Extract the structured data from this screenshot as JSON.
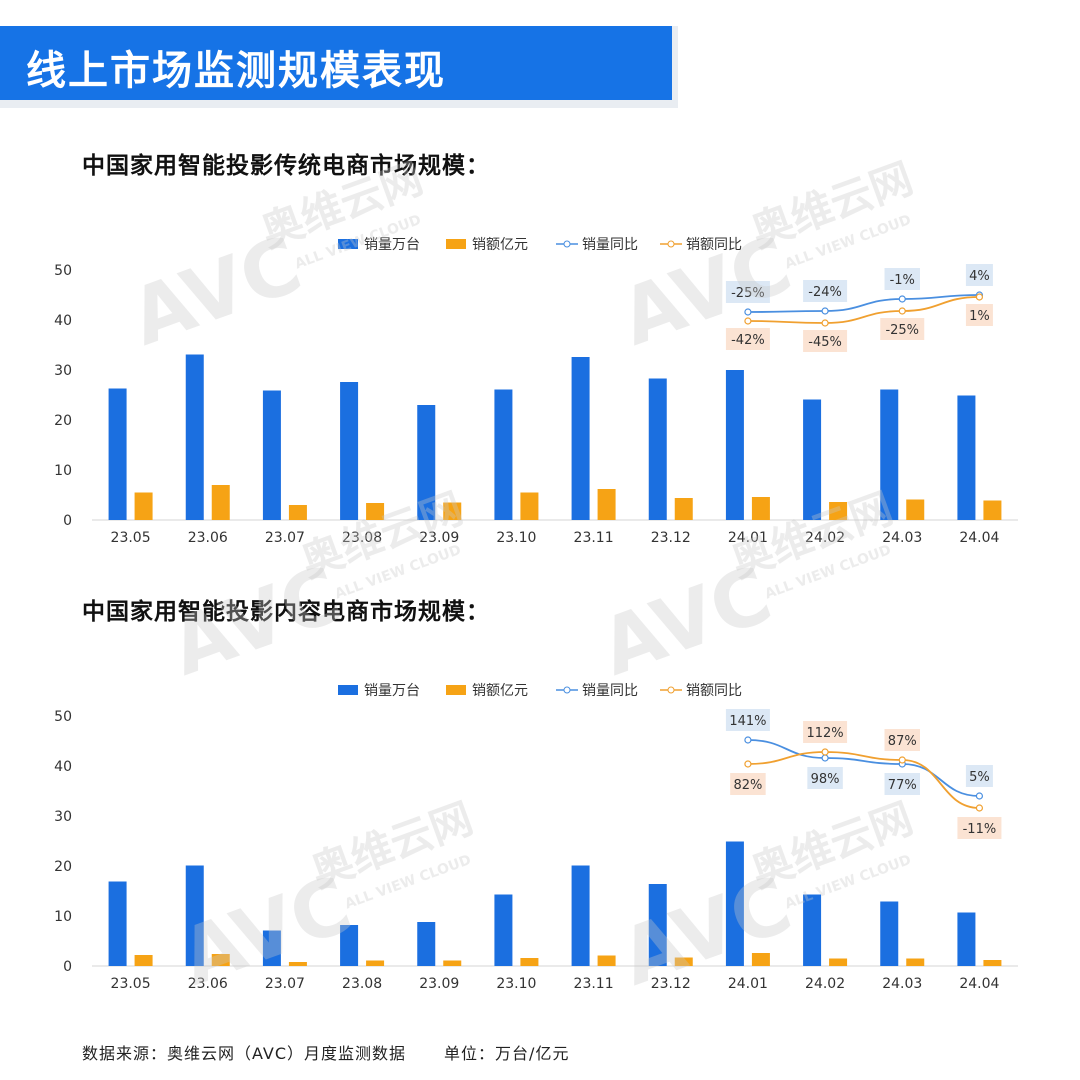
{
  "header": {
    "title": "线上市场监测规模表现"
  },
  "sections": [
    {
      "title": "中国家用智能投影传统电商市场规模："
    },
    {
      "title": "中国家用智能投影内容电商市场规模："
    }
  ],
  "watermark": {
    "text": "奥维云网",
    "sub": "ALL VIEW CLOUD",
    "logo": "AVC"
  },
  "colors": {
    "bar_volume": "#1b6fe0",
    "bar_revenue": "#f6a315",
    "line_volume": "#4a8fe0",
    "line_revenue": "#f0a030",
    "label_volume_bg": "#dce8f5",
    "label_revenue_bg": "#fbe3d3"
  },
  "chart_data": [
    {
      "type": "bar",
      "categories": [
        "23.05",
        "23.06",
        "23.07",
        "23.08",
        "23.09",
        "23.10",
        "23.11",
        "23.12",
        "24.01",
        "24.02",
        "24.03",
        "24.04"
      ],
      "ylim": [
        0,
        50
      ],
      "yticks": [
        0,
        10,
        20,
        30,
        40,
        50
      ],
      "legend": [
        "销量万台",
        "销额亿元",
        "销量同比",
        "销额同比"
      ],
      "series": [
        {
          "name": "销量万台",
          "values": [
            26.3,
            33.1,
            25.9,
            27.6,
            23.0,
            26.1,
            32.6,
            28.3,
            30.0,
            24.1,
            26.1,
            24.9
          ]
        },
        {
          "name": "销额亿元",
          "values": [
            5.5,
            7.0,
            3.0,
            3.4,
            3.5,
            5.5,
            6.2,
            4.4,
            4.6,
            3.6,
            4.1,
            3.9
          ]
        }
      ],
      "lines": [
        {
          "name": "销量同比",
          "x": [
            "24.01",
            "24.02",
            "24.03",
            "24.04"
          ],
          "values": [
            "-25%",
            "-24%",
            "-1%",
            "4%"
          ]
        },
        {
          "name": "销额同比",
          "x": [
            "24.01",
            "24.02",
            "24.03",
            "24.04"
          ],
          "values": [
            "-42%",
            "-45%",
            "-25%",
            "1%"
          ]
        }
      ]
    },
    {
      "type": "bar",
      "categories": [
        "23.05",
        "23.06",
        "23.07",
        "23.08",
        "23.09",
        "23.10",
        "23.11",
        "23.12",
        "24.01",
        "24.02",
        "24.03",
        "24.04"
      ],
      "ylim": [
        0,
        50
      ],
      "yticks": [
        0,
        10,
        20,
        30,
        40,
        50
      ],
      "legend": [
        "销量万台",
        "销额亿元",
        "销量同比",
        "销额同比"
      ],
      "series": [
        {
          "name": "销量万台",
          "values": [
            16.9,
            20.1,
            7.1,
            8.2,
            8.8,
            14.3,
            20.1,
            16.4,
            24.9,
            14.3,
            12.9,
            10.7
          ]
        },
        {
          "name": "销额亿元",
          "values": [
            2.2,
            2.4,
            0.8,
            1.1,
            1.1,
            1.6,
            2.1,
            1.7,
            2.6,
            1.5,
            1.5,
            1.2
          ]
        }
      ],
      "lines": [
        {
          "name": "销量同比",
          "x": [
            "24.01",
            "24.02",
            "24.03",
            "24.04"
          ],
          "values": [
            "141%",
            "98%",
            "77%",
            "5%"
          ]
        },
        {
          "name": "销额同比",
          "x": [
            "24.01",
            "24.02",
            "24.03",
            "24.04"
          ],
          "values": [
            "82%",
            "112%",
            "87%",
            "-11%"
          ]
        }
      ]
    }
  ],
  "footer": {
    "source": "数据来源：奥维云网（AVC）月度监测数据",
    "unit": "单位：万台/亿元"
  }
}
